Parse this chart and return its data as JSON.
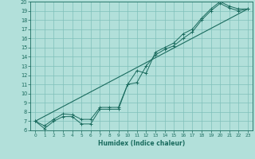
{
  "xlabel": "Humidex (Indice chaleur)",
  "bg_color": "#b2e0da",
  "grid_color": "#7fbfba",
  "line_color": "#1a6b5e",
  "xlim": [
    -0.5,
    23.5
  ],
  "ylim": [
    6,
    20
  ],
  "xticks": [
    0,
    1,
    2,
    3,
    4,
    5,
    6,
    7,
    8,
    9,
    10,
    11,
    12,
    13,
    14,
    15,
    16,
    17,
    18,
    19,
    20,
    21,
    22,
    23
  ],
  "yticks": [
    6,
    7,
    8,
    9,
    10,
    11,
    12,
    13,
    14,
    15,
    16,
    17,
    18,
    19,
    20
  ],
  "series1_x": [
    0,
    1,
    2,
    3,
    4,
    5,
    6,
    7,
    8,
    9,
    10,
    11,
    12,
    13,
    14,
    15,
    16,
    17,
    18,
    19,
    20,
    21,
    22,
    23
  ],
  "series1_y": [
    7.0,
    6.2,
    7.0,
    7.5,
    7.5,
    6.7,
    6.7,
    8.3,
    8.3,
    8.3,
    11.0,
    12.5,
    12.2,
    14.5,
    15.0,
    15.5,
    16.5,
    17.0,
    18.2,
    19.2,
    20.0,
    19.5,
    19.2,
    19.2
  ],
  "series2_x": [
    0,
    1,
    2,
    3,
    4,
    5,
    6,
    7,
    8,
    9,
    10,
    11,
    12,
    13,
    14,
    15,
    16,
    17,
    18,
    19,
    20,
    21,
    22,
    23
  ],
  "series2_y": [
    7.0,
    6.5,
    7.2,
    7.8,
    7.7,
    7.2,
    7.2,
    8.5,
    8.5,
    8.5,
    11.0,
    11.2,
    13.0,
    14.2,
    14.8,
    15.2,
    16.0,
    16.7,
    18.0,
    19.0,
    19.8,
    19.3,
    19.0,
    19.2
  ],
  "ref_line_x": [
    0,
    23
  ],
  "ref_line_y": [
    7.0,
    19.2
  ]
}
